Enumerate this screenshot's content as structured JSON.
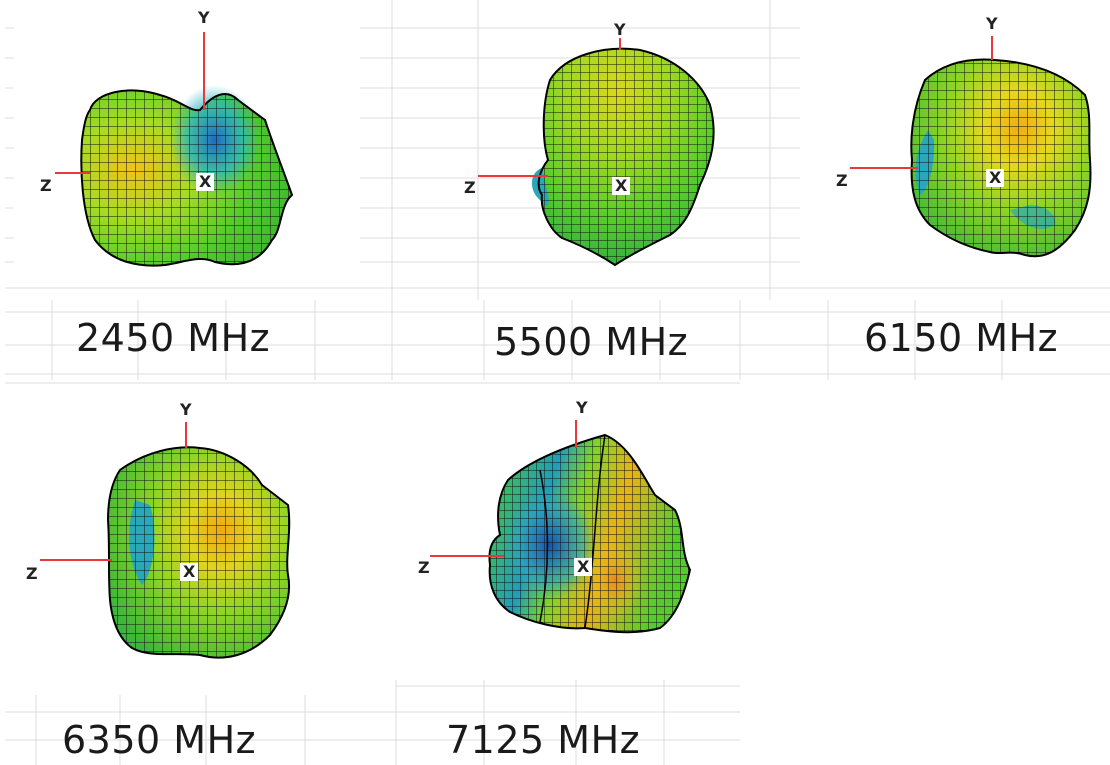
{
  "axis_labels": {
    "y": "Y",
    "z": "Z",
    "x": "X"
  },
  "colors": {
    "grid": "#d4d4d4",
    "axis": "#e8383b",
    "mesh": "#111111",
    "green": "#5fd12a",
    "yellow": "#e6e022",
    "orange": "#f2a10f",
    "cyan": "#26b5c9",
    "blue": "#1b5bb8"
  },
  "panels": [
    {
      "label": "2450 MHz"
    },
    {
      "label": "5500 MHz"
    },
    {
      "label": "6150 MHz"
    },
    {
      "label": "6350 MHz"
    },
    {
      "label": "7125 MHz"
    }
  ]
}
